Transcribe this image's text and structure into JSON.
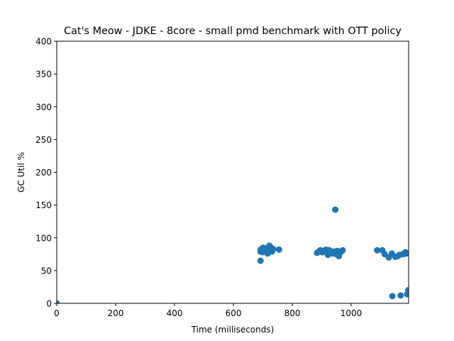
{
  "chart_data": {
    "type": "scatter",
    "title": "Cat's Meow - JDKE - 8core -  small pmd benchmark with OTT policy",
    "xlabel": "Time (milliseconds)",
    "ylabel": "GC Util %",
    "xlim": [
      0,
      1195
    ],
    "ylim": [
      0,
      400
    ],
    "xticks": [
      0,
      200,
      400,
      600,
      800,
      1000
    ],
    "yticks": [
      0,
      50,
      100,
      150,
      200,
      250,
      300,
      350,
      400
    ],
    "grid": false,
    "legend": "none",
    "marker_color": "#1f77b4",
    "series": [
      {
        "points": [
          [
            0,
            0
          ],
          [
            692,
            65
          ],
          [
            692,
            79
          ],
          [
            693,
            82
          ],
          [
            694,
            80
          ],
          [
            697,
            83
          ],
          [
            699,
            78
          ],
          [
            701,
            85
          ],
          [
            704,
            82
          ],
          [
            706,
            80
          ],
          [
            708,
            84
          ],
          [
            711,
            81
          ],
          [
            713,
            79
          ],
          [
            716,
            76
          ],
          [
            718,
            83
          ],
          [
            720,
            85
          ],
          [
            722,
            88
          ],
          [
            724,
            80
          ],
          [
            726,
            86
          ],
          [
            728,
            82
          ],
          [
            731,
            79
          ],
          [
            735,
            83
          ],
          [
            755,
            82
          ],
          [
            884,
            77
          ],
          [
            890,
            79
          ],
          [
            895,
            81
          ],
          [
            902,
            78
          ],
          [
            908,
            80
          ],
          [
            914,
            82
          ],
          [
            917,
            79
          ],
          [
            921,
            74
          ],
          [
            926,
            81
          ],
          [
            931,
            78
          ],
          [
            937,
            76
          ],
          [
            941,
            79
          ],
          [
            946,
            143
          ],
          [
            950,
            75
          ],
          [
            953,
            80
          ],
          [
            958,
            72
          ],
          [
            962,
            77
          ],
          [
            966,
            79
          ],
          [
            971,
            81
          ],
          [
            1088,
            81
          ],
          [
            1106,
            81
          ],
          [
            1114,
            75
          ],
          [
            1128,
            70
          ],
          [
            1138,
            76
          ],
          [
            1140,
            11
          ],
          [
            1150,
            71
          ],
          [
            1158,
            72
          ],
          [
            1164,
            74
          ],
          [
            1168,
            12
          ],
          [
            1176,
            75
          ],
          [
            1184,
            78
          ],
          [
            1186,
            76
          ],
          [
            1190,
            14
          ],
          [
            1194,
            20
          ]
        ]
      }
    ]
  }
}
